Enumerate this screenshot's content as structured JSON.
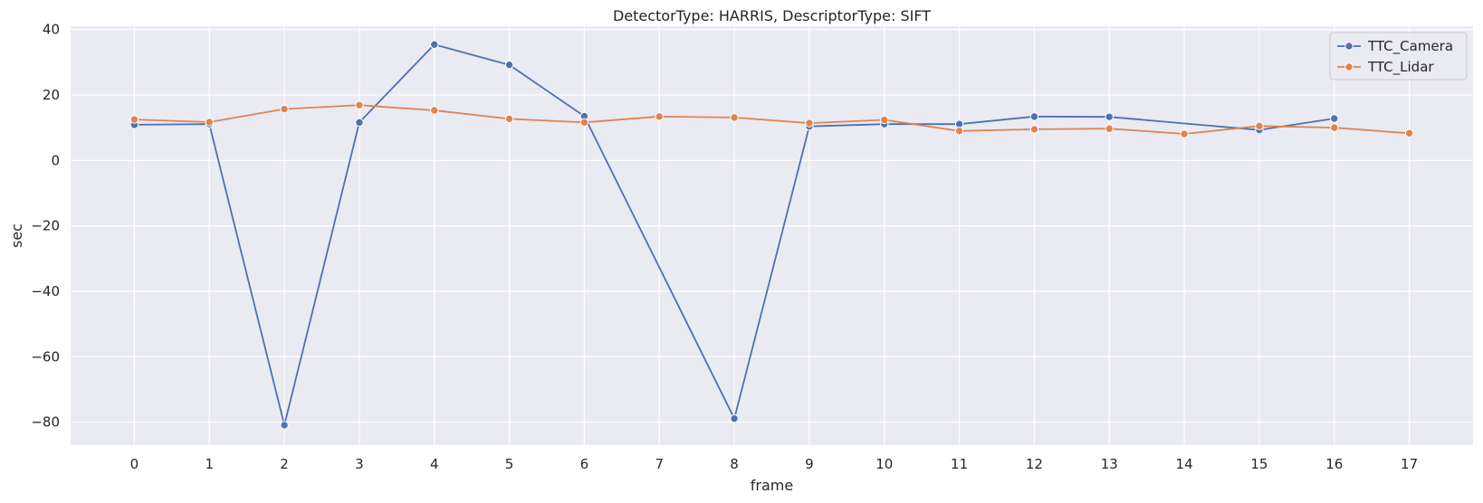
{
  "chart_data": {
    "type": "line",
    "title": "DetectorType: HARRIS, DescriptorType: SIFT",
    "xlabel": "frame",
    "ylabel": "sec",
    "xlim": [
      -0.85,
      17.85
    ],
    "ylim": [
      -87,
      41
    ],
    "xticks": [
      0,
      1,
      2,
      3,
      4,
      5,
      6,
      7,
      8,
      9,
      10,
      11,
      12,
      13,
      14,
      15,
      16,
      17
    ],
    "yticks": [
      -80,
      -60,
      -40,
      -20,
      0,
      20,
      40
    ],
    "ytick_labels": [
      "−80",
      "−60",
      "−40",
      "−20",
      "0",
      "20",
      "40"
    ],
    "grid": true,
    "legend_position": "top-right",
    "background": "#eaeaf2",
    "series": [
      {
        "name": "TTC_Camera",
        "color": "#4c72b0",
        "x": [
          0,
          1,
          2,
          3,
          4,
          5,
          6,
          8,
          9,
          10,
          11,
          12,
          13,
          15,
          16
        ],
        "y": [
          10.9,
          11.1,
          -80.9,
          11.6,
          35.4,
          29.2,
          13.5,
          -78.9,
          10.4,
          11.1,
          11.1,
          13.4,
          13.3,
          9.3,
          12.8
        ]
      },
      {
        "name": "TTC_Lidar",
        "color": "#dd8452",
        "x": [
          0,
          1,
          2,
          3,
          4,
          5,
          6,
          7,
          8,
          9,
          10,
          11,
          12,
          13,
          14,
          15,
          16,
          17
        ],
        "y": [
          12.5,
          11.7,
          15.7,
          16.9,
          15.3,
          12.7,
          11.6,
          13.4,
          13.1,
          11.4,
          12.4,
          9.0,
          9.5,
          9.7,
          8.1,
          10.5,
          10.0,
          8.3
        ]
      }
    ]
  }
}
